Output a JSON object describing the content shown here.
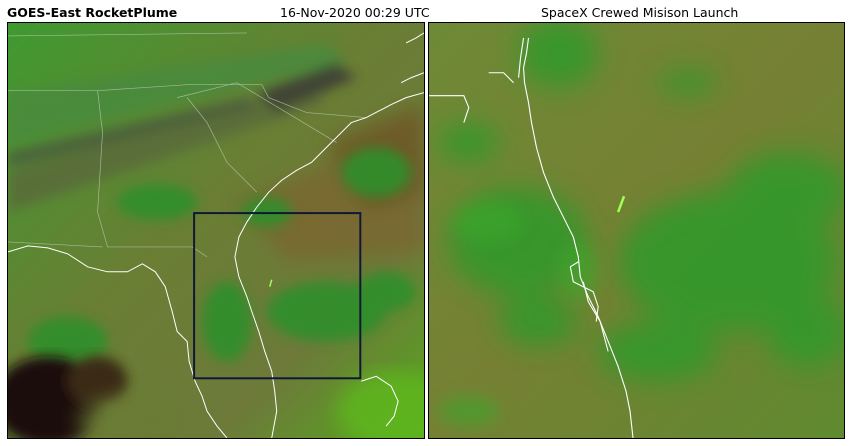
{
  "header": {
    "left_title": "GOES-East RocketPlume",
    "timestamp": "16-Nov-2020 00:29 UTC",
    "right_title": "SpaceX Crewed Misison Launch"
  },
  "colors": {
    "dark_green": "#2f8a2c",
    "olive": "#6f7f35",
    "bright_green": "#4fae18",
    "box_outline": "#101838",
    "coastline": "#ffffff",
    "rocket_plume": "#9cff5a"
  },
  "panels": [
    {
      "name": "regional-view",
      "content": "false-color satellite imagery of the southeastern United States with a highlighted zoom box over Florida"
    },
    {
      "name": "zoom-view",
      "content": "enlarged false-color satellite imagery of the Florida east coast near Cape Canaveral showing the rocket plume"
    }
  ]
}
